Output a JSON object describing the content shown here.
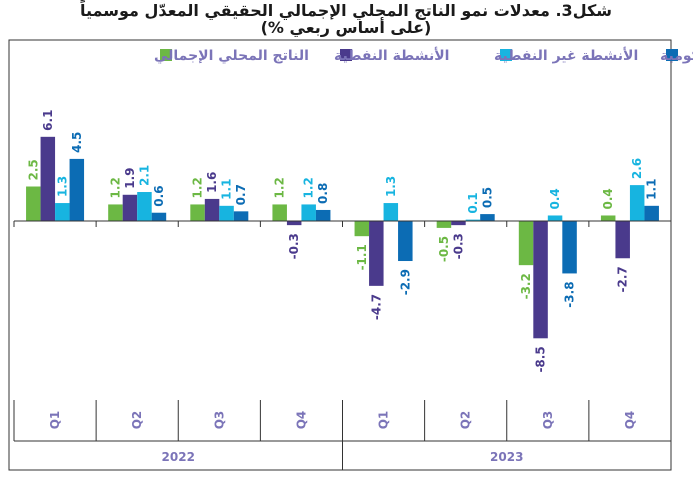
{
  "title_line1": "شكل3. معدلات نمو الناتج المحلي الإجمالي الحقيقي المعدّل موسمياً",
  "title_line2": "(على أساس ربعي %)",
  "colors": {
    "gdp": "#6cb844",
    "oil": "#4a3a8c",
    "nonoil": "#17b4e0",
    "gov": "#0c6cb4",
    "label": "#7b74b8",
    "frame": "#333333"
  },
  "chart_data": {
    "type": "bar",
    "title": "شكل3. معدلات نمو الناتج المحلي الإجمالي الحقيقي المعدّل موسمياً (على أساس ربعي %)",
    "categories": [
      "Q1",
      "Q2",
      "Q3",
      "Q4",
      "Q1",
      "Q2",
      "Q3",
      "Q4"
    ],
    "groups": [
      {
        "label": "2022",
        "categories": [
          "Q1",
          "Q2",
          "Q3",
          "Q4"
        ]
      },
      {
        "label": "2023",
        "categories": [
          "Q1",
          "Q2",
          "Q3",
          "Q4"
        ]
      }
    ],
    "series": [
      {
        "name": "الناتج المحلي الإجمالي",
        "key": "gdp",
        "values": [
          2.5,
          1.2,
          1.2,
          1.2,
          -1.1,
          -0.5,
          -3.2,
          0.4
        ]
      },
      {
        "name": "الأنشطة النفطية",
        "key": "oil",
        "values": [
          6.1,
          1.9,
          1.6,
          -0.3,
          -4.7,
          -0.3,
          -8.5,
          -2.7
        ]
      },
      {
        "name": "الأنشطة غير النفطية",
        "key": "nonoil",
        "values": [
          1.3,
          2.1,
          1.1,
          1.2,
          1.3,
          0.1,
          0.4,
          2.6
        ]
      },
      {
        "name": "الأنشطة الحكومية",
        "key": "gov",
        "values": [
          4.5,
          0.6,
          0.7,
          0.8,
          -2.9,
          0.5,
          -3.8,
          1.1
        ]
      }
    ],
    "ylim": [
      -10.5,
      7.5
    ],
    "legend_position": "top",
    "grid": false
  }
}
